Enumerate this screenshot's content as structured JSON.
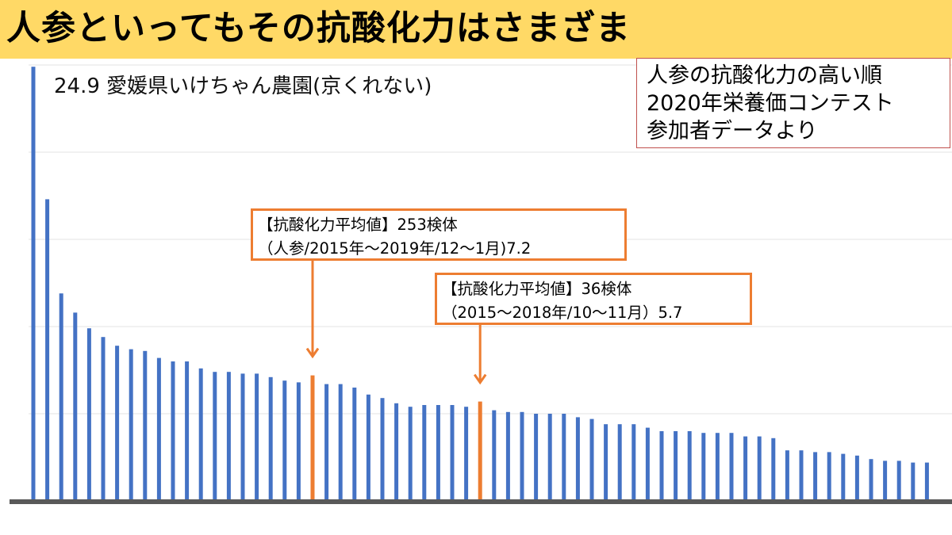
{
  "title": "人参といってもその抗酸化力はさまざま",
  "legend_box": [
    "人参の抗酸化力の高い順",
    "2020年栄養価コンテスト",
    "参加者データより"
  ],
  "top_label": "24.9 愛媛県いけちゃん農園(京くれない)",
  "annotation_1": [
    "【抗酸化力平均値】253検体",
    "（人参/2015年～2019年/12～1月)7.2"
  ],
  "annotation_2": [
    "【抗酸化力平均値】36検体",
    "（2015～2018年/10～11月）5.7"
  ],
  "colors": {
    "bar": "#4472c4",
    "highlight": "#ed7d31",
    "title_bg": "#ffd966",
    "legend_border": "#c0504d"
  },
  "chart_data": {
    "type": "bar",
    "ylim": [
      0,
      25
    ],
    "grid": true,
    "highlight_values": [
      7.2,
      5.7
    ],
    "values": [
      24.9,
      17.3,
      11.9,
      10.8,
      9.9,
      9.4,
      8.9,
      8.7,
      8.6,
      8.2,
      8.0,
      8.0,
      7.6,
      7.4,
      7.4,
      7.3,
      7.3,
      7.1,
      6.9,
      6.8,
      7.2,
      6.7,
      6.7,
      6.5,
      6.1,
      5.9,
      5.6,
      5.4,
      5.5,
      5.5,
      5.5,
      5.4,
      5.7,
      5.2,
      5.1,
      5.1,
      5.0,
      5.0,
      5.0,
      4.8,
      4.7,
      4.4,
      4.4,
      4.4,
      4.2,
      4.0,
      4.0,
      4.0,
      3.9,
      3.9,
      3.9,
      3.7,
      3.7,
      3.6,
      2.9,
      2.9,
      2.8,
      2.8,
      2.7,
      2.6,
      2.4,
      2.3,
      2.3,
      2.2,
      2.2
    ]
  }
}
